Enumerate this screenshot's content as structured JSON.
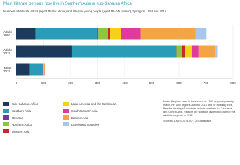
{
  "chart_data": {
    "type": "stacked-bar-horizontal",
    "title": "Most illiterate persons now live in Southern Asia or sub-Saharan Africa",
    "subtitle": "Numbers of illiterate adults (aged 15 and above) and illiterate young people (aged 15–24) (million), by region, 1950 and 2015",
    "categories": [
      "Adults 1950",
      "Adults 2015",
      "Youth 2015"
    ],
    "series": [
      {
        "name": "Sub-Saharan Africa",
        "color": "#1b3a5c",
        "values": [
          70,
          205,
          50
        ]
      },
      {
        "name": "Southern Asia",
        "color": "#2b9cb8",
        "values": [
          230,
          385,
          45
        ]
      },
      {
        "name": "Oceania",
        "color": "#6a3d9a",
        "values": [
          2,
          1,
          1
        ]
      },
      {
        "name": "Northern Africa",
        "color": "#8dc63f",
        "values": [
          35,
          20,
          2
        ]
      },
      {
        "name": "Western Asia",
        "color": "#c8282e",
        "values": [
          10,
          12,
          1
        ]
      },
      {
        "name": "Latin America and the Caribbean",
        "color": "#f7d117",
        "values": [
          40,
          25,
          2
        ]
      },
      {
        "name": "South-Eastern Asia",
        "color": "#e03a9e",
        "values": [
          70,
          25,
          1
        ]
      },
      {
        "name": "Eastern Asia",
        "color": "#f5a443",
        "values": [
          205,
          62,
          2
        ]
      },
      {
        "name": "Developed countries",
        "color": "#a8c8ea",
        "values": [
          40,
          8,
          1
        ]
      }
    ],
    "xlim": [
      0,
      800
    ],
    "xticks": [
      0,
      100,
      200,
      300,
      400,
      500,
      600,
      700,
      800
    ],
    "grid": true,
    "notes": "Notes: Regions used in the source for 1950 may not perfectly match the SDG regions used for 2015 and for labelling lines. Bars for developed countries include numbers for Caucasus and Central Asia. Regions are sorted in ascending order of the adult literacy rate in 2015.",
    "sources": "Sources: UNESCO (1957), UIS database."
  }
}
